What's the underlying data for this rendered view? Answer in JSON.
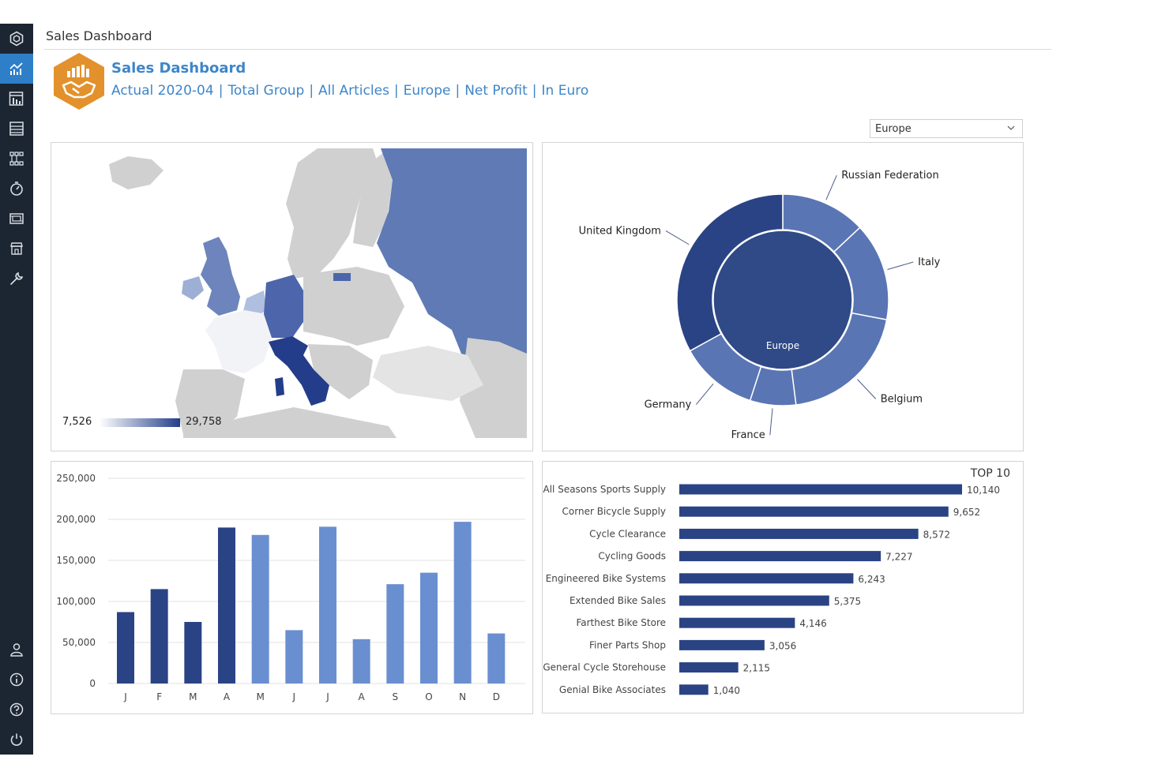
{
  "app": {
    "page_title": "Sales Dashboard"
  },
  "sidebar": {
    "items": [
      {
        "name": "home",
        "icon": "hexagon-icon"
      },
      {
        "name": "analytics",
        "icon": "chart-lines-icon",
        "active": true
      },
      {
        "name": "reports",
        "icon": "bar-report-icon"
      },
      {
        "name": "data",
        "icon": "table-icon"
      },
      {
        "name": "hierarchy",
        "icon": "hierarchy-icon"
      },
      {
        "name": "timer",
        "icon": "stopwatch-icon"
      },
      {
        "name": "gallery",
        "icon": "film-icon"
      },
      {
        "name": "store",
        "icon": "store-icon"
      },
      {
        "name": "tools",
        "icon": "wrench-icon"
      },
      {
        "name": "user",
        "icon": "user-icon"
      },
      {
        "name": "info",
        "icon": "info-icon"
      },
      {
        "name": "help",
        "icon": "help-icon"
      },
      {
        "name": "power",
        "icon": "power-icon"
      }
    ]
  },
  "header": {
    "title": "Sales Dashboard",
    "filters": [
      "Actual 2020-04",
      "Total Group",
      "All Articles",
      "Europe",
      "Net Profit",
      "In Euro"
    ],
    "separator": "|"
  },
  "region_select": {
    "value": "Europe"
  },
  "map": {
    "legend_min": "7,526",
    "legend_max": "29,758"
  },
  "colors": {
    "dark": "#2a4384",
    "medium": "#5a75b3",
    "light": "#6a8fd0",
    "accent": "#3e86c8",
    "logo": "#e3912c",
    "sidebar": "#1c2632"
  },
  "chart_data": [
    {
      "type": "pie",
      "variant": "sunburst",
      "center_label": "Europe",
      "categories": [
        "Russian Federation",
        "Italy",
        "Belgium",
        "France",
        "Germany",
        "United Kingdom"
      ],
      "values": [
        13,
        15,
        20,
        7,
        12,
        33
      ]
    },
    {
      "type": "bar",
      "categories": [
        "J",
        "F",
        "M",
        "A",
        "M",
        "J",
        "J",
        "A",
        "S",
        "O",
        "N",
        "D"
      ],
      "values": [
        87000,
        115000,
        75000,
        190000,
        181000,
        65000,
        191000,
        54000,
        121000,
        135000,
        197000,
        61000
      ],
      "ylim": [
        0,
        250000
      ],
      "yticks": [
        "0",
        "50,000",
        "100,000",
        "150,000",
        "200,000",
        "250,000"
      ],
      "grid": true
    },
    {
      "type": "bar",
      "orientation": "horizontal",
      "title": "TOP 10",
      "categories": [
        "All Seasons Sports Supply",
        "Corner Bicycle Supply",
        "Cycle Clearance",
        "Cycling Goods",
        "Engineered Bike Systems",
        "Extended Bike Sales",
        "Farthest Bike Store",
        "Finer Parts Shop",
        "General Cycle Storehouse",
        "Genial Bike Associates"
      ],
      "values": [
        10140,
        9652,
        8572,
        7227,
        6243,
        5375,
        4146,
        3056,
        2115,
        1040
      ],
      "labels": [
        "10,140",
        "9,652",
        "8,572",
        "7,227",
        "6,243",
        "5,375",
        "4,146",
        "3,056",
        "2,115",
        "1,040"
      ]
    }
  ]
}
